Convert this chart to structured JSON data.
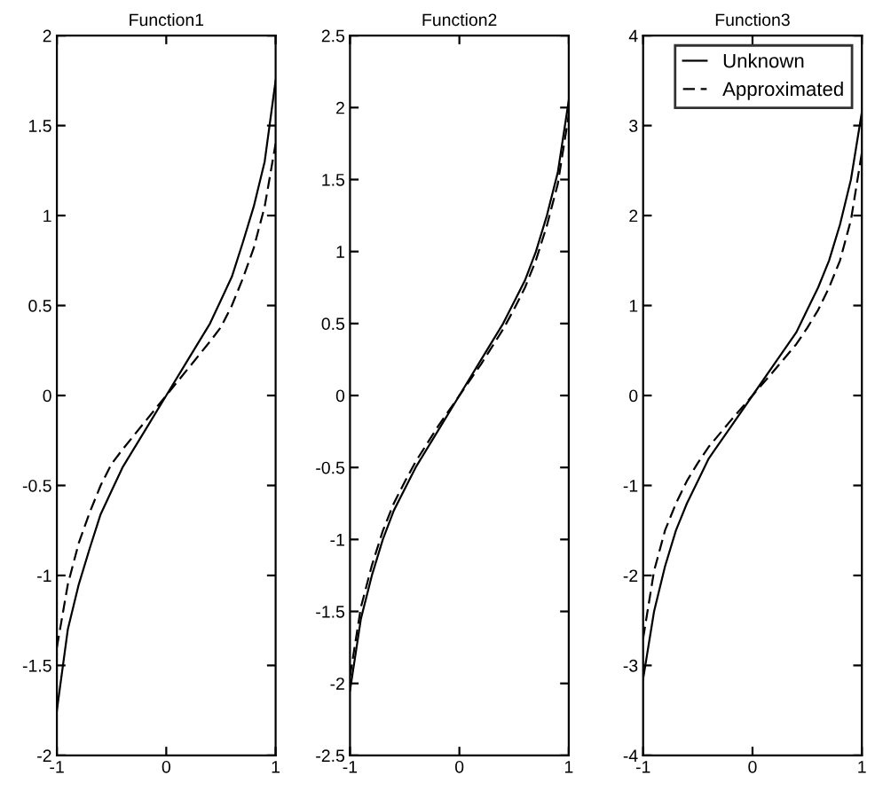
{
  "chart_data": [
    {
      "type": "line",
      "title": "Function1",
      "x": [
        -1,
        -0.9,
        -0.8,
        -0.7,
        -0.6,
        -0.5,
        -0.4,
        -0.2,
        0,
        0.2,
        0.4,
        0.5,
        0.6,
        0.7,
        0.8,
        0.9,
        1
      ],
      "xlim": [
        -1,
        1
      ],
      "xticks": [
        -1,
        0,
        1
      ],
      "ylim": [
        -2,
        2
      ],
      "yticks": [
        -2,
        -1.5,
        -1,
        -0.5,
        0,
        0.5,
        1,
        1.5,
        2
      ],
      "grid": false,
      "legend": false,
      "series": [
        {
          "color": "#000000",
          "line_style": "solid",
          "values": [
            -1.75,
            -1.3,
            -1.05,
            -0.85,
            -0.66,
            -0.53,
            -0.4,
            -0.2,
            0,
            0.2,
            0.4,
            0.53,
            0.66,
            0.85,
            1.05,
            1.3,
            1.75
          ]
        },
        {
          "color": "#000000",
          "line_style": "dashed",
          "values": [
            -1.4,
            -1.05,
            -0.82,
            -0.65,
            -0.5,
            -0.38,
            -0.3,
            -0.15,
            0,
            0.15,
            0.3,
            0.38,
            0.5,
            0.65,
            0.82,
            1.05,
            1.4
          ]
        }
      ]
    },
    {
      "type": "line",
      "title": "Function2",
      "x": [
        -1,
        -0.9,
        -0.8,
        -0.7,
        -0.6,
        -0.5,
        -0.4,
        -0.2,
        0,
        0.2,
        0.4,
        0.5,
        0.6,
        0.7,
        0.8,
        0.9,
        1
      ],
      "xlim": [
        -1,
        1
      ],
      "xticks": [
        -1,
        0,
        1
      ],
      "ylim": [
        -2.5,
        2.5
      ],
      "yticks": [
        -2.5,
        -2,
        -1.5,
        -1,
        -0.5,
        0,
        0.5,
        1,
        1.5,
        2,
        2.5
      ],
      "grid": false,
      "legend": false,
      "series": [
        {
          "color": "#000000",
          "line_style": "solid",
          "values": [
            -2.05,
            -1.55,
            -1.25,
            -1.0,
            -0.8,
            -0.65,
            -0.5,
            -0.25,
            0,
            0.25,
            0.5,
            0.65,
            0.8,
            1.0,
            1.25,
            1.55,
            2.05
          ]
        },
        {
          "color": "#000000",
          "line_style": "dashed",
          "values": [
            -1.95,
            -1.47,
            -1.18,
            -0.94,
            -0.75,
            -0.6,
            -0.46,
            -0.22,
            0,
            0.22,
            0.46,
            0.6,
            0.75,
            0.94,
            1.18,
            1.47,
            1.95
          ]
        }
      ]
    },
    {
      "type": "line",
      "title": "Function3",
      "x": [
        -1,
        -0.9,
        -0.8,
        -0.7,
        -0.6,
        -0.5,
        -0.4,
        -0.2,
        0,
        0.2,
        0.4,
        0.5,
        0.6,
        0.7,
        0.8,
        0.9,
        1
      ],
      "xlim": [
        -1,
        1
      ],
      "xticks": [
        -1,
        0,
        1
      ],
      "ylim": [
        -4,
        4
      ],
      "yticks": [
        -4,
        -3,
        -2,
        -1,
        0,
        1,
        2,
        3,
        4
      ],
      "grid": false,
      "legend": "top right",
      "series": [
        {
          "name": "Unknown",
          "color": "#000000",
          "line_style": "solid",
          "values": [
            -3.15,
            -2.4,
            -1.9,
            -1.5,
            -1.2,
            -0.95,
            -0.7,
            -0.35,
            0,
            0.35,
            0.7,
            0.95,
            1.2,
            1.5,
            1.9,
            2.4,
            3.15
          ]
        },
        {
          "name": "Approximated",
          "color": "#000000",
          "line_style": "dashed",
          "values": [
            -2.7,
            -1.95,
            -1.5,
            -1.2,
            -0.95,
            -0.75,
            -0.57,
            -0.28,
            0,
            0.28,
            0.57,
            0.75,
            0.95,
            1.2,
            1.5,
            1.95,
            2.7
          ]
        }
      ]
    }
  ]
}
